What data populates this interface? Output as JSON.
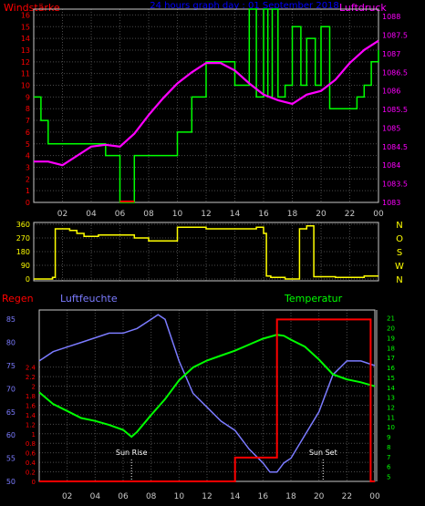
{
  "chart_data": [
    {
      "type": "line",
      "title": "24 hours graph day : 01 September 2018",
      "left_axis_label": "Windstärke",
      "right_axis_label": "Luftdruck",
      "left_ylim": [
        0,
        16.5
      ],
      "right_ylim": [
        1083,
        1088.2
      ],
      "left_ticks": [
        "0",
        "1",
        "2",
        "3",
        "4",
        "5",
        "6",
        "7",
        "8",
        "9",
        "10",
        "11",
        "12",
        "13",
        "14",
        "15",
        "16"
      ],
      "right_ticks": [
        "1083",
        "1083.5",
        "1084",
        "1084.5",
        "1085",
        "1085.5",
        "1086",
        "1086.5",
        "1087",
        "1087.5",
        "1088"
      ],
      "x_ticks": [
        "02",
        "04",
        "06",
        "08",
        "10",
        "12",
        "14",
        "16",
        "18",
        "20",
        "22",
        "00"
      ],
      "xlim": [
        0,
        24
      ],
      "grid": true,
      "colors": {
        "wind": "#00ff00",
        "pressure": "#ff00ff",
        "wind_zero": "#ff0000",
        "left_axis": "#ff0000",
        "right_axis": "#ff00ff",
        "title": "#0000ff"
      },
      "series": [
        {
          "key": "wind",
          "axis": "left",
          "step": true,
          "x": [
            0,
            0.5,
            1,
            1.3,
            2,
            3,
            4,
            5,
            6,
            7,
            8,
            9,
            10,
            11,
            12,
            13,
            14,
            15,
            15.5,
            16,
            16.3,
            16.6,
            17,
            17.5,
            18,
            18.6,
            19,
            19.6,
            20,
            20.6,
            21,
            22,
            22.5,
            23,
            23.5,
            24
          ],
          "y": [
            9,
            7,
            5,
            5,
            5,
            5,
            5,
            4,
            0,
            4,
            4,
            4,
            6,
            9,
            12,
            12,
            10,
            16.5,
            9,
            16.5,
            9,
            16.5,
            9,
            10,
            15,
            10,
            14,
            10,
            15,
            8,
            8,
            8,
            9,
            10,
            12,
            13
          ]
        },
        {
          "key": "pressure",
          "axis": "right",
          "x": [
            0,
            1,
            2,
            3,
            4,
            5,
            6,
            7,
            8,
            9,
            10,
            11,
            12,
            13,
            14,
            15,
            16,
            17,
            18,
            19,
            20,
            21,
            22,
            23,
            24
          ],
          "y": [
            1084.1,
            1084.1,
            1084,
            1084.25,
            1084.5,
            1084.55,
            1084.5,
            1084.85,
            1085.35,
            1085.8,
            1086.2,
            1086.5,
            1086.75,
            1086.75,
            1086.55,
            1086.2,
            1085.9,
            1085.75,
            1085.65,
            1085.9,
            1086,
            1086.3,
            1086.75,
            1087.1,
            1087.35
          ]
        }
      ]
    },
    {
      "type": "line",
      "left_ylim": [
        0,
        360
      ],
      "left_ticks": [
        "0",
        "90",
        "180",
        "270",
        "360"
      ],
      "right_ticks": [
        "N",
        "W",
        "S",
        "O",
        "N"
      ],
      "xlim": [
        0,
        24
      ],
      "colors": {
        "direction": "#ffff00",
        "ticks": "#ffff00"
      },
      "series": [
        {
          "key": "direction",
          "axis": "left",
          "step": true,
          "x": [
            0,
            1.3,
            1.5,
            2,
            2.5,
            3,
            3.5,
            4,
            4.5,
            5,
            6,
            7,
            8,
            8.5,
            9,
            10,
            11,
            12,
            13,
            14,
            15,
            15.5,
            16,
            16.2,
            16.5,
            17,
            17.5,
            18,
            18.5,
            19,
            19.5,
            20,
            21,
            22,
            23,
            24
          ],
          "y": [
            0,
            10,
            330,
            330,
            320,
            300,
            280,
            280,
            290,
            290,
            290,
            270,
            250,
            250,
            250,
            340,
            340,
            330,
            330,
            330,
            330,
            340,
            300,
            20,
            10,
            10,
            0,
            0,
            330,
            350,
            15,
            15,
            10,
            10,
            20,
            20
          ]
        }
      ]
    },
    {
      "type": "line",
      "left_axis_label": "Regen",
      "mid_axis_label": "Luftfeuchte",
      "right_axis_label": "Temperatur",
      "rain_ylim": [
        0,
        3.6
      ],
      "rain_ticks": [
        "0",
        "0.2",
        "0.4",
        "0.6",
        "0.8",
        "1",
        "1.2",
        "1.4",
        "1.6",
        "1.8",
        "2",
        "2.2",
        "2.4"
      ],
      "humidity_ylim": [
        50,
        87
      ],
      "humidity_ticks": [
        "50",
        "55",
        "60",
        "65",
        "70",
        "75",
        "80",
        "85"
      ],
      "temp_ylim": [
        4.5,
        21.8
      ],
      "temp_ticks": [
        "5",
        "6",
        "7",
        "8",
        "9",
        "10",
        "11",
        "12",
        "13",
        "14",
        "15",
        "16",
        "17",
        "18",
        "19",
        "20",
        "21"
      ],
      "x_ticks": [
        "02",
        "04",
        "06",
        "08",
        "10",
        "12",
        "14",
        "16",
        "18",
        "20",
        "22",
        "00"
      ],
      "xlim": [
        0,
        24
      ],
      "annotations": [
        {
          "text": "Sun Rise",
          "x": 6.6
        },
        {
          "text": "Sun Set",
          "x": 20.3
        }
      ],
      "colors": {
        "rain": "#ff0000",
        "humidity": "#7b7bff",
        "temperature": "#00ff00",
        "rain_axis": "#ff0000",
        "humidity_axis": "#7b7bff",
        "temp_axis": "#00ff00",
        "annotation": "#ffffff"
      },
      "series": [
        {
          "key": "rain",
          "axis": "rain",
          "step": true,
          "x": [
            0,
            13.9,
            14,
            16.9,
            17,
            23.6,
            23.7,
            24
          ],
          "y": [
            0,
            0,
            0.5,
            0.5,
            3.4,
            3.4,
            0,
            0
          ]
        },
        {
          "key": "humidity",
          "axis": "humidity",
          "x": [
            0,
            1,
            2,
            3,
            4,
            5,
            6,
            7,
            8,
            8.5,
            9,
            10,
            11,
            12,
            13,
            14,
            15,
            16,
            16.5,
            17,
            17.5,
            18,
            19,
            20,
            21,
            22,
            23,
            24
          ],
          "y": [
            76,
            78,
            79,
            80,
            81,
            82,
            82,
            83,
            85,
            86,
            85,
            76,
            69,
            66,
            63,
            61,
            57,
            54,
            52,
            52,
            54,
            55,
            60,
            65,
            73,
            76,
            76,
            75
          ]
        },
        {
          "key": "temperature",
          "axis": "temp",
          "x": [
            0,
            1,
            2,
            3,
            4,
            5,
            6,
            6.6,
            7,
            8,
            9,
            10,
            11,
            12,
            13,
            14,
            15,
            16,
            17,
            17.5,
            18,
            19,
            20,
            21,
            22,
            23,
            24
          ],
          "y": [
            13.5,
            12.3,
            11.6,
            10.9,
            10.6,
            10.2,
            9.7,
            9,
            9.5,
            11.2,
            12.8,
            14.7,
            16,
            16.7,
            17.2,
            17.7,
            18.3,
            18.9,
            19.3,
            19.2,
            18.8,
            18.1,
            16.8,
            15.3,
            14.8,
            14.5,
            14.1
          ]
        }
      ]
    }
  ]
}
